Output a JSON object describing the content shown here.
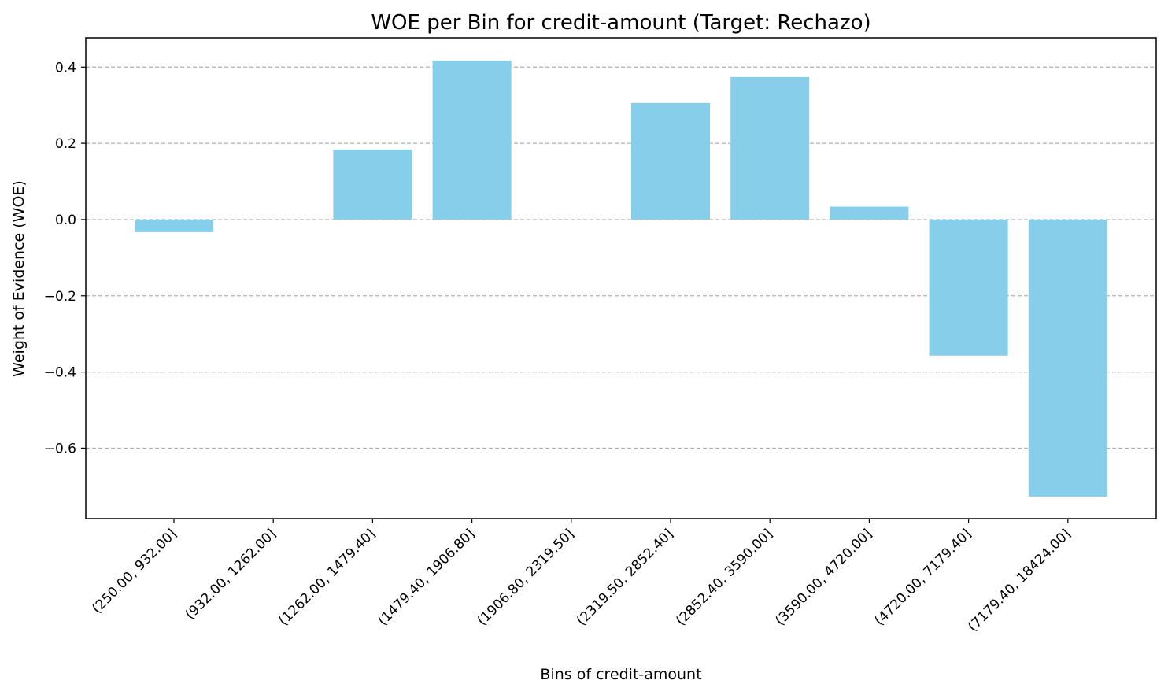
{
  "chart_data": {
    "type": "bar",
    "title": "WOE per Bin for credit-amount (Target: Rechazo)",
    "xlabel": "Bins of credit-amount",
    "ylabel": "Weight of Evidence (WOE)",
    "categories": [
      "(250.00, 932.00]",
      "(932.00, 1262.00]",
      "(1262.00, 1479.40]",
      "(1479.40, 1906.80]",
      "(1906.80, 2319.50]",
      "(2319.50, 2852.40]",
      "(2852.40, 3590.00]",
      "(3590.00, 4720.00]",
      "(4720.00, 7179.40]",
      "(7179.40, 18424.00]"
    ],
    "values": [
      -0.033,
      0.0,
      0.184,
      0.417,
      0.0,
      0.306,
      0.374,
      0.034,
      -0.357,
      -0.727
    ],
    "ylim": [
      -0.785,
      0.477
    ],
    "yticks": [
      0.4,
      0.2,
      0.0,
      -0.2,
      -0.4,
      -0.6
    ],
    "ytick_labels": [
      "0.4",
      "0.2",
      "0.0",
      "−0.2",
      "−0.4",
      "−0.6"
    ],
    "grid": "y-dashed",
    "bar_color": "#87CEEB"
  }
}
